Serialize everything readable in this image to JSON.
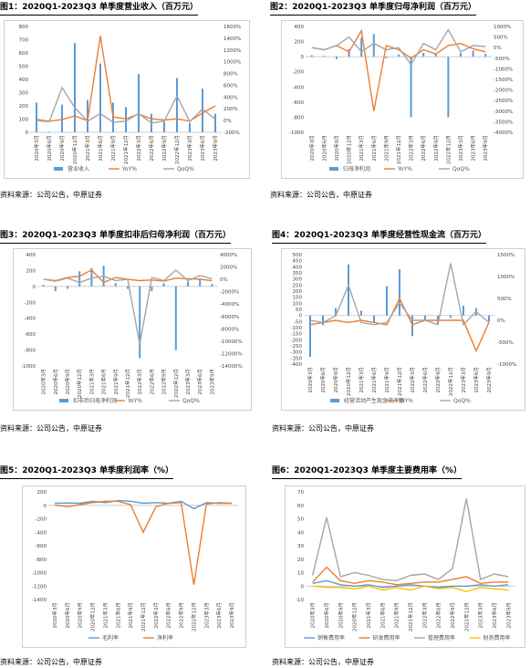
{
  "colors": {
    "bar": "#5b9bd5",
    "yoy": "#ed7d31",
    "qoq": "#a5a5a5",
    "c4": "#ffc000"
  },
  "source_text": "资料来源：公司公告，中原证券",
  "categories": [
    "2020年3月",
    "2020年6月",
    "2020年9月",
    "2020年12月",
    "2021年3月",
    "2021年6月",
    "2021年9月",
    "2021年12月",
    "2022年3月",
    "2022年6月",
    "2022年9月",
    "2022年12月",
    "2023年3月",
    "2023年6月",
    "2023年9月"
  ],
  "chart_data": [
    {
      "id": "c1",
      "type": "bar",
      "title": "图1：2020Q1-2023Q3 单季度营业收入（百万元）",
      "ylim": [
        0,
        800
      ],
      "yticks": [
        0,
        100,
        200,
        300,
        400,
        500,
        600,
        700,
        800
      ],
      "y2lim": [
        -200,
        1600
      ],
      "y2ticks": [
        -200,
        0,
        200,
        400,
        600,
        800,
        1000,
        1200,
        1400,
        1600
      ],
      "y2suffix": "%",
      "series": [
        {
          "name": "营业收入",
          "kind": "bar",
          "axis": "left",
          "values": [
            225,
            5,
            210,
            675,
            245,
            520,
            225,
            190,
            440,
            140,
            80,
            410,
            70,
            330,
            140
          ]
        },
        {
          "name": "YoY%",
          "kind": "line",
          "axis": "right",
          "values": [
            20,
            -10,
            15,
            80,
            -5,
            1440,
            60,
            30,
            110,
            30,
            10,
            30,
            -10,
            130,
            250
          ]
        },
        {
          "name": "QoQ%",
          "kind": "line",
          "axis": "right",
          "values": [
            0,
            -20,
            560,
            220,
            -10,
            120,
            -30,
            -10,
            120,
            -40,
            -10,
            420,
            -20,
            200,
            20
          ]
        }
      ]
    },
    {
      "id": "c2",
      "type": "bar",
      "title": "图2：2020Q1-2023Q3 单季度归母净利润（百万元）",
      "ylim": [
        -1000,
        400
      ],
      "yticks": [
        -1000,
        -800,
        -600,
        -400,
        -200,
        0,
        200,
        400
      ],
      "y2lim": [
        -4000,
        1000
      ],
      "y2ticks": [
        -4000,
        -3500,
        -3000,
        -2500,
        -2000,
        -1500,
        -1000,
        -500,
        0,
        500,
        1000
      ],
      "y2suffix": "%",
      "series": [
        {
          "name": "归母净利润",
          "kind": "bar",
          "axis": "left",
          "values": [
            20,
            10,
            -30,
            100,
            250,
            300,
            -20,
            30,
            -800,
            50,
            40,
            -800,
            50,
            80,
            40
          ]
        },
        {
          "name": "YoY%",
          "kind": "line",
          "axis": "right",
          "values": [
            0,
            -100,
            100,
            -200,
            800,
            -3000,
            100,
            -100,
            -500,
            -100,
            -300,
            100,
            200,
            -50,
            -200
          ]
        },
        {
          "name": "QoQ%",
          "kind": "line",
          "axis": "right",
          "values": [
            0,
            -100,
            100,
            500,
            -200,
            200,
            -100,
            0,
            -800,
            200,
            -100,
            850,
            -200,
            100,
            50
          ]
        }
      ]
    },
    {
      "id": "c3",
      "type": "bar",
      "title": "图3：2020Q1-2023Q3 单季度扣非后归母净利润（百万元）",
      "ylim": [
        -1000,
        400
      ],
      "yticks": [
        -1000,
        -800,
        -600,
        -400,
        -200,
        0,
        200,
        400
      ],
      "y2lim": [
        -14000,
        4000
      ],
      "y2ticks": [
        -14000,
        -12000,
        -10000,
        -8000,
        -6000,
        -4000,
        -2000,
        0,
        2000,
        4000
      ],
      "y2suffix": "%",
      "series": [
        {
          "name": "扣非后归母净利润",
          "kind": "bar",
          "axis": "left",
          "values": [
            20,
            -60,
            -30,
            190,
            230,
            260,
            40,
            -30,
            -900,
            -60,
            40,
            -800,
            60,
            100,
            30
          ]
        },
        {
          "name": "YoY%",
          "kind": "line",
          "axis": "right",
          "values": [
            0,
            -200,
            300,
            500,
            1500,
            -500,
            300,
            0,
            -200,
            -100,
            -300,
            200,
            100,
            0,
            -200
          ]
        },
        {
          "name": "QoQ%",
          "kind": "line",
          "axis": "right",
          "values": [
            0,
            -300,
            200,
            -500,
            200,
            500,
            -200,
            0,
            -10500,
            300,
            -200,
            1500,
            -200,
            600,
            100
          ]
        }
      ]
    },
    {
      "id": "c4",
      "type": "bar",
      "title": "图4：2020Q1-2023Q3 单季度经营性现金流（百万元）",
      "ylim": [
        -400,
        500
      ],
      "yticks": [
        -400,
        -350,
        -300,
        -250,
        -200,
        -150,
        -100,
        -50,
        0,
        50,
        100,
        150,
        200,
        250,
        300,
        350,
        400,
        450,
        500
      ],
      "y2lim": [
        -1000,
        1500
      ],
      "y2ticks": [
        -1000,
        -500,
        0,
        500,
        1000,
        1500
      ],
      "y2suffix": "%",
      "series": [
        {
          "name": "经营活动产生现金流净额",
          "kind": "bar",
          "axis": "left",
          "values": [
            -340,
            -80,
            60,
            420,
            40,
            -60,
            240,
            380,
            -170,
            -40,
            -70,
            -20,
            80,
            60,
            -50
          ]
        },
        {
          "name": "YoY%",
          "kind": "line",
          "axis": "right",
          "values": [
            -100,
            -50,
            0,
            -50,
            0,
            -50,
            -100,
            500,
            -100,
            0,
            0,
            0,
            0,
            -700,
            -50
          ]
        },
        {
          "name": "QoQ%",
          "kind": "line",
          "axis": "right",
          "values": [
            0,
            -50,
            100,
            800,
            -50,
            -100,
            -50,
            400,
            0,
            0,
            -100,
            1300,
            -100,
            200,
            -50
          ]
        }
      ]
    },
    {
      "id": "c5",
      "type": "line",
      "title": "图5：2020Q1-2023Q3 单季度利润率（%）",
      "ylim": [
        -1400,
        200
      ],
      "yticks": [
        -1400,
        -1200,
        -1000,
        -800,
        -600,
        -400,
        -200,
        0,
        200
      ],
      "series": [
        {
          "name": "毛利率",
          "kind": "line",
          "axis": "left",
          "values": [
            30,
            35,
            30,
            60,
            40,
            70,
            60,
            30,
            40,
            30,
            60,
            -50,
            40,
            30,
            30
          ]
        },
        {
          "name": "净利率",
          "kind": "line",
          "axis": "left",
          "values": [
            5,
            -20,
            10,
            40,
            60,
            60,
            10,
            -400,
            -20,
            30,
            40,
            -1180,
            20,
            40,
            30
          ]
        }
      ]
    },
    {
      "id": "c6",
      "type": "line",
      "title": "图6：2020Q1-2023Q3 单季度主要费用率（%）",
      "ylim": [
        -10,
        70
      ],
      "yticks": [
        -10,
        0,
        10,
        20,
        30,
        40,
        50,
        60,
        70
      ],
      "series": [
        {
          "name": "销售费用率",
          "kind": "line",
          "axis": "left",
          "values": [
            2,
            4,
            1,
            0,
            1,
            -1,
            0,
            1,
            0,
            -1,
            0,
            0,
            1,
            0,
            1
          ]
        },
        {
          "name": "研发费用率",
          "kind": "line",
          "axis": "left",
          "values": [
            3,
            14,
            4,
            2,
            4,
            3,
            1,
            2,
            3,
            3,
            5,
            7,
            2,
            3,
            3
          ]
        },
        {
          "name": "管理费用率",
          "kind": "line",
          "axis": "left",
          "values": [
            8,
            51,
            7,
            10,
            8,
            5,
            4,
            8,
            9,
            5,
            13,
            65,
            5,
            9,
            7
          ]
        },
        {
          "name": "财务费用率",
          "kind": "line",
          "axis": "left",
          "values": [
            0,
            -1,
            -1,
            -2,
            0,
            -3,
            -1,
            -3,
            0,
            -2,
            -1,
            -4,
            -1,
            -2,
            -3
          ]
        }
      ]
    }
  ]
}
